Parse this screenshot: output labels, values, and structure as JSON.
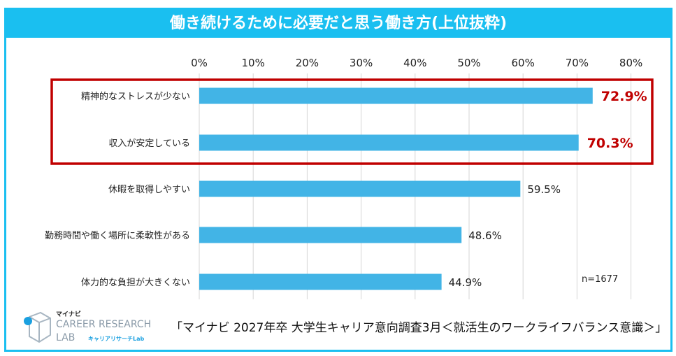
{
  "chart_data": {
    "type": "bar",
    "orientation": "horizontal",
    "title": "働き続けるために必要だと思う働き方(上位抜粋)",
    "categories": [
      "精神的なストレスが少ない",
      "収入が安定している",
      "休暇を取得しやすい",
      "勤務時間や働く場所に柔軟性がある",
      "体力的な負担が大きくない"
    ],
    "values": [
      72.9,
      70.3,
      59.5,
      48.6,
      44.9
    ],
    "value_labels": [
      "72.9%",
      "70.3%",
      "59.5%",
      "48.6%",
      "44.9%"
    ],
    "highlighted": [
      true,
      true,
      false,
      false,
      false
    ],
    "xlim": [
      0,
      80
    ],
    "ticks": [
      "0%",
      "10%",
      "20%",
      "30%",
      "40%",
      "50%",
      "60%",
      "70%",
      "80%"
    ],
    "grid": true,
    "annotation": "n=1677",
    "colors": {
      "bar": "#42b4e6",
      "highlight": "#c00000",
      "frame": "#1abff0"
    }
  },
  "footer": {
    "source": "「マイナビ  2027年卒  大学生キャリア意向調査3月＜就活生のワークライフバランス意識＞」",
    "logo": {
      "brand": "マイナビ",
      "line1": "CAREER RESEARCH",
      "line2": "LAB",
      "sub": "キャリアリサーチLab"
    }
  }
}
